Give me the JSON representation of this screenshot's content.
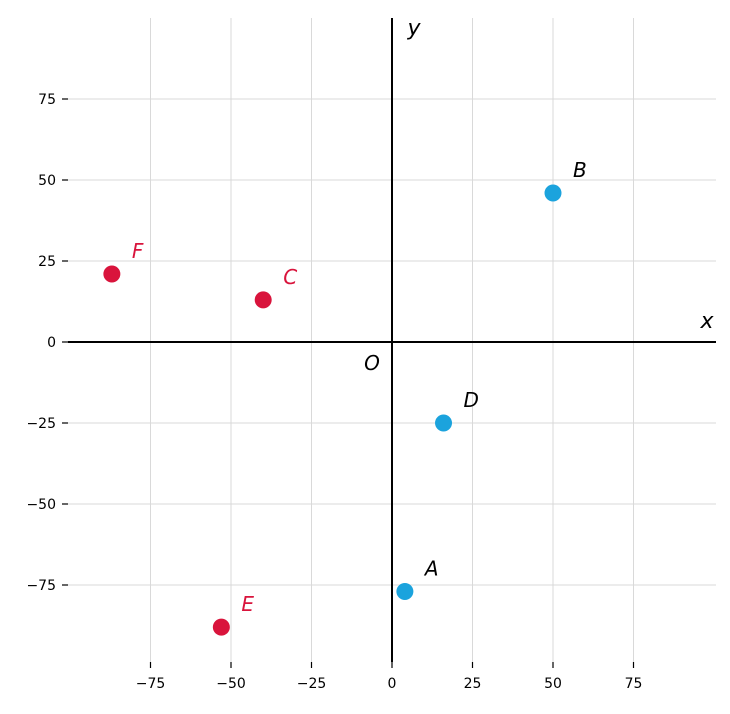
{
  "chart_data": {
    "type": "scatter",
    "title": "",
    "xlabel": "x",
    "ylabel": "y",
    "origin_label": "O",
    "xlim": [
      -100,
      100
    ],
    "ylim": [
      -100,
      100
    ],
    "xticks": [
      -75,
      -50,
      -25,
      0,
      25,
      50,
      75
    ],
    "yticks": [
      -75,
      -50,
      -25,
      0,
      25,
      50,
      75
    ],
    "xtick_labels": [
      "−75",
      "−50",
      "−25",
      "0",
      "25",
      "50",
      "75"
    ],
    "ytick_labels": [
      "−75",
      "−50",
      "−25",
      "0",
      "25",
      "50",
      "75"
    ],
    "grid": true,
    "colors": {
      "blue": "#1ba3dd",
      "red": "#d9143c"
    },
    "points": [
      {
        "label": "A",
        "x": 4,
        "y": -77,
        "color": "#1ba3dd"
      },
      {
        "label": "B",
        "x": 50,
        "y": 46,
        "color": "#1ba3dd"
      },
      {
        "label": "C",
        "x": -40,
        "y": 13,
        "color": "#d9143c"
      },
      {
        "label": "D",
        "x": 16,
        "y": -25,
        "color": "#1ba3dd"
      },
      {
        "label": "E",
        "x": -53,
        "y": -88,
        "color": "#d9143c"
      },
      {
        "label": "F",
        "x": -87,
        "y": 21,
        "color": "#d9143c"
      }
    ]
  }
}
